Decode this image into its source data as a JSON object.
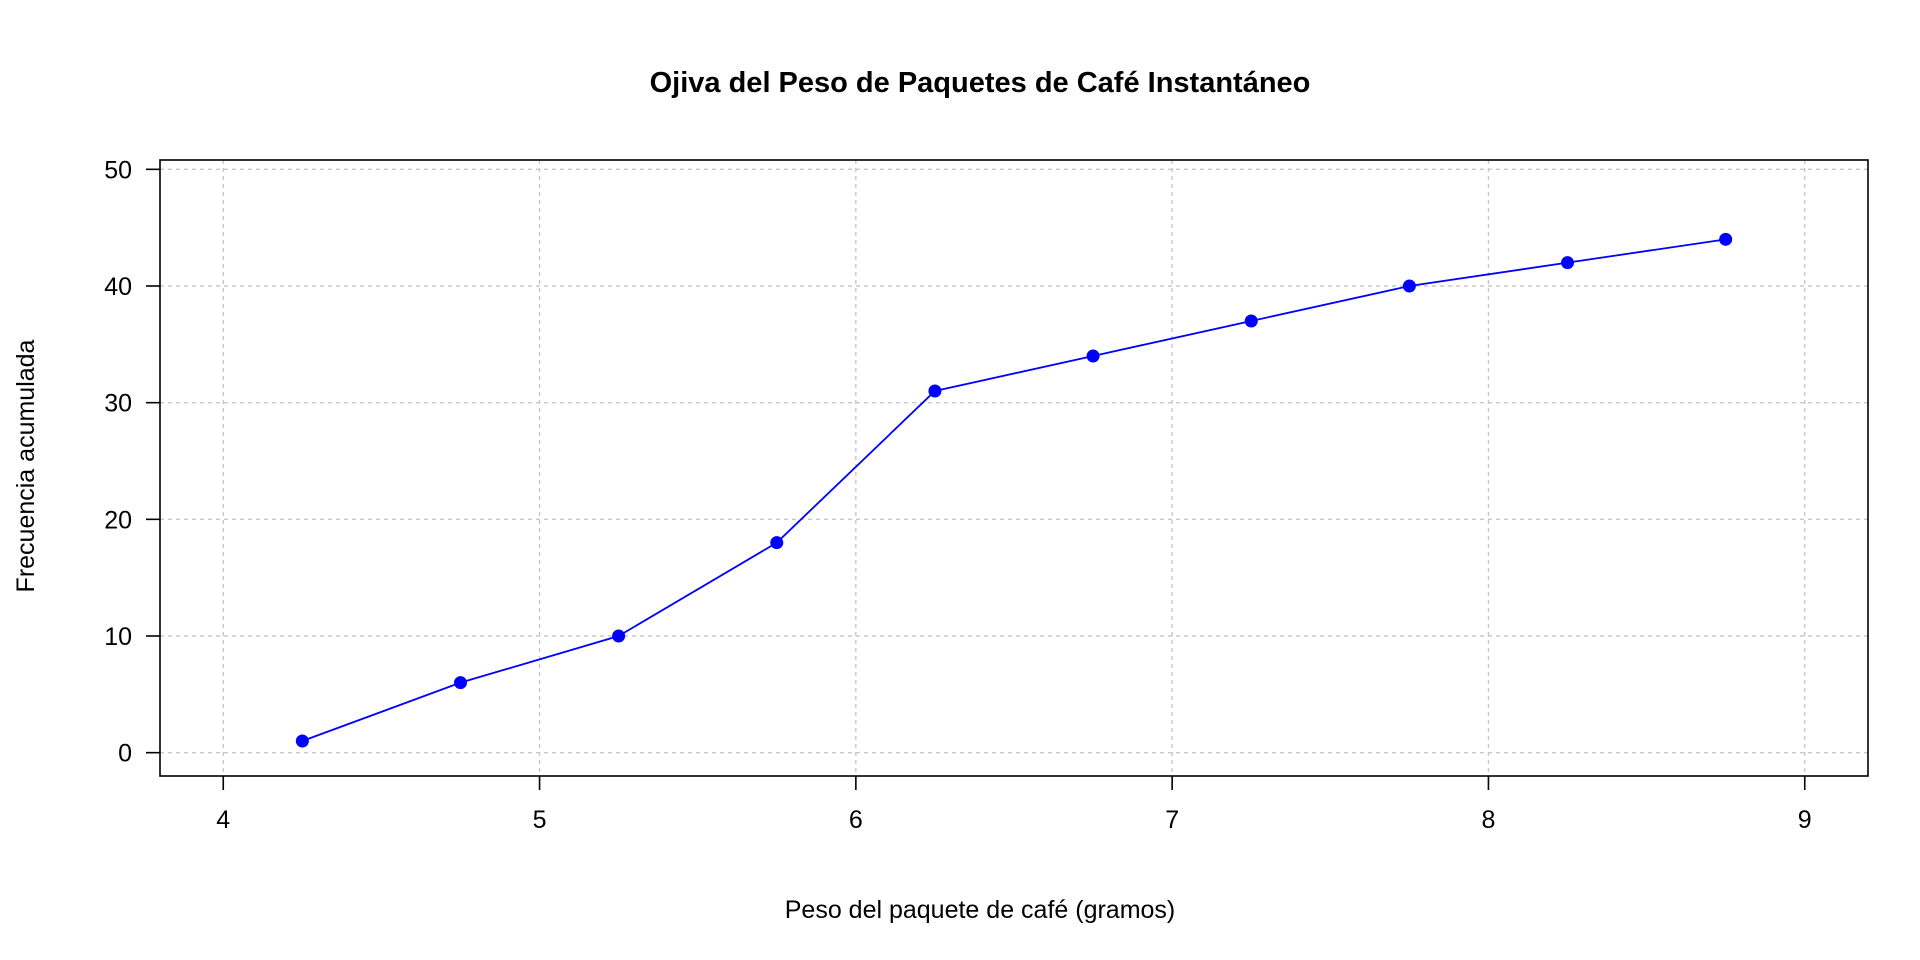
{
  "chart_data": {
    "type": "line",
    "title": "Ojiva del Peso de Paquetes de Café Instantáneo",
    "xlabel": "Peso del paquete de café (gramos)",
    "ylabel": "Frecuencia acumulada",
    "x": [
      4.25,
      4.75,
      5.25,
      5.75,
      6.25,
      6.75,
      7.25,
      7.75,
      8.25,
      8.75
    ],
    "series": [
      {
        "values": [
          1,
          6,
          10,
          18,
          31,
          34,
          37,
          40,
          42,
          44
        ]
      }
    ],
    "xlim": [
      3.8,
      9.2
    ],
    "ylim": [
      -2,
      50.8
    ],
    "xticks": [
      4,
      5,
      6,
      7,
      8,
      9
    ],
    "yticks": [
      0,
      10,
      20,
      30,
      40,
      50
    ],
    "grid": true,
    "line_color": "#0000ff",
    "marker_color": "#0000ff"
  }
}
